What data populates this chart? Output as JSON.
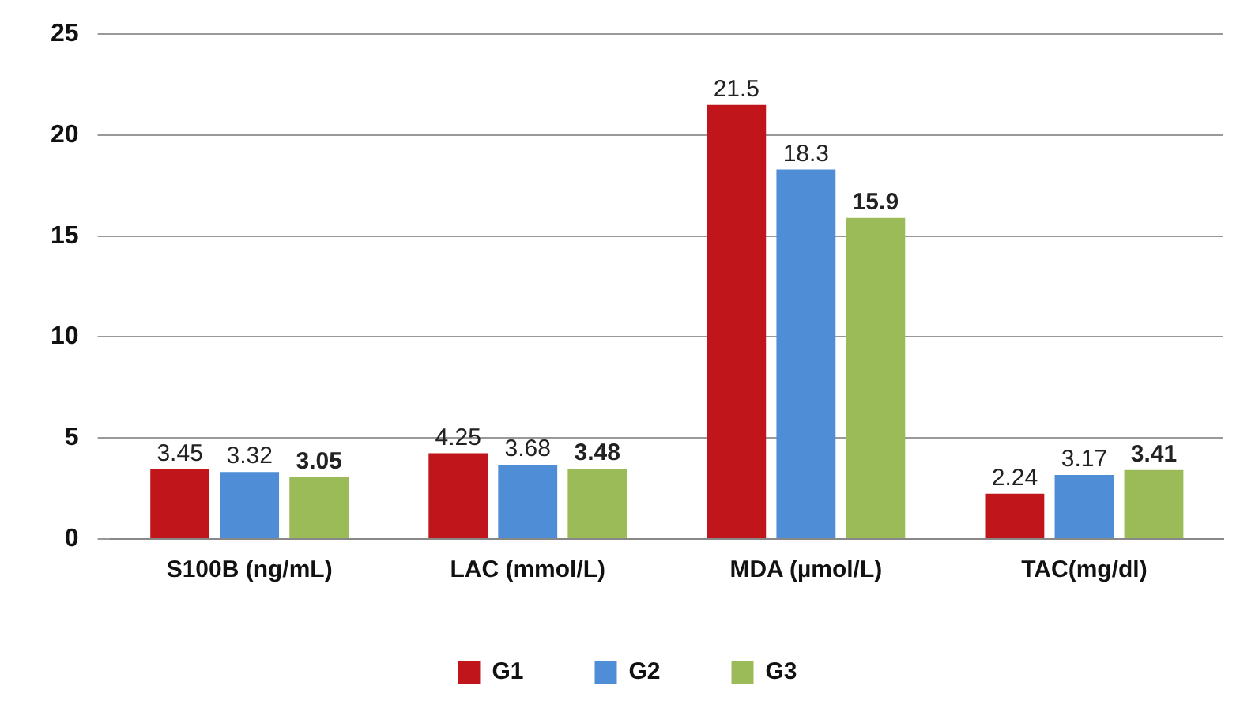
{
  "chart_data": {
    "type": "bar",
    "categories": [
      "S100B (ng/mL)",
      "LAC (mmol/L)",
      "MDA (µmol/L)",
      "TAC(mg/dl)"
    ],
    "series": [
      {
        "name": "G1",
        "color": "#c0161b",
        "values": [
          3.45,
          4.25,
          21.5,
          2.24
        ]
      },
      {
        "name": "G2",
        "color": "#4f8ed6",
        "values": [
          3.32,
          3.68,
          18.3,
          3.17
        ]
      },
      {
        "name": "G3",
        "color": "#9bbb59",
        "values": [
          3.05,
          3.48,
          15.9,
          3.41
        ]
      }
    ],
    "ylim": [
      0,
      25
    ],
    "yticks": [
      0,
      5,
      10,
      15,
      20,
      25
    ],
    "grid": "y",
    "legend": "bottom",
    "data_labels": true
  }
}
